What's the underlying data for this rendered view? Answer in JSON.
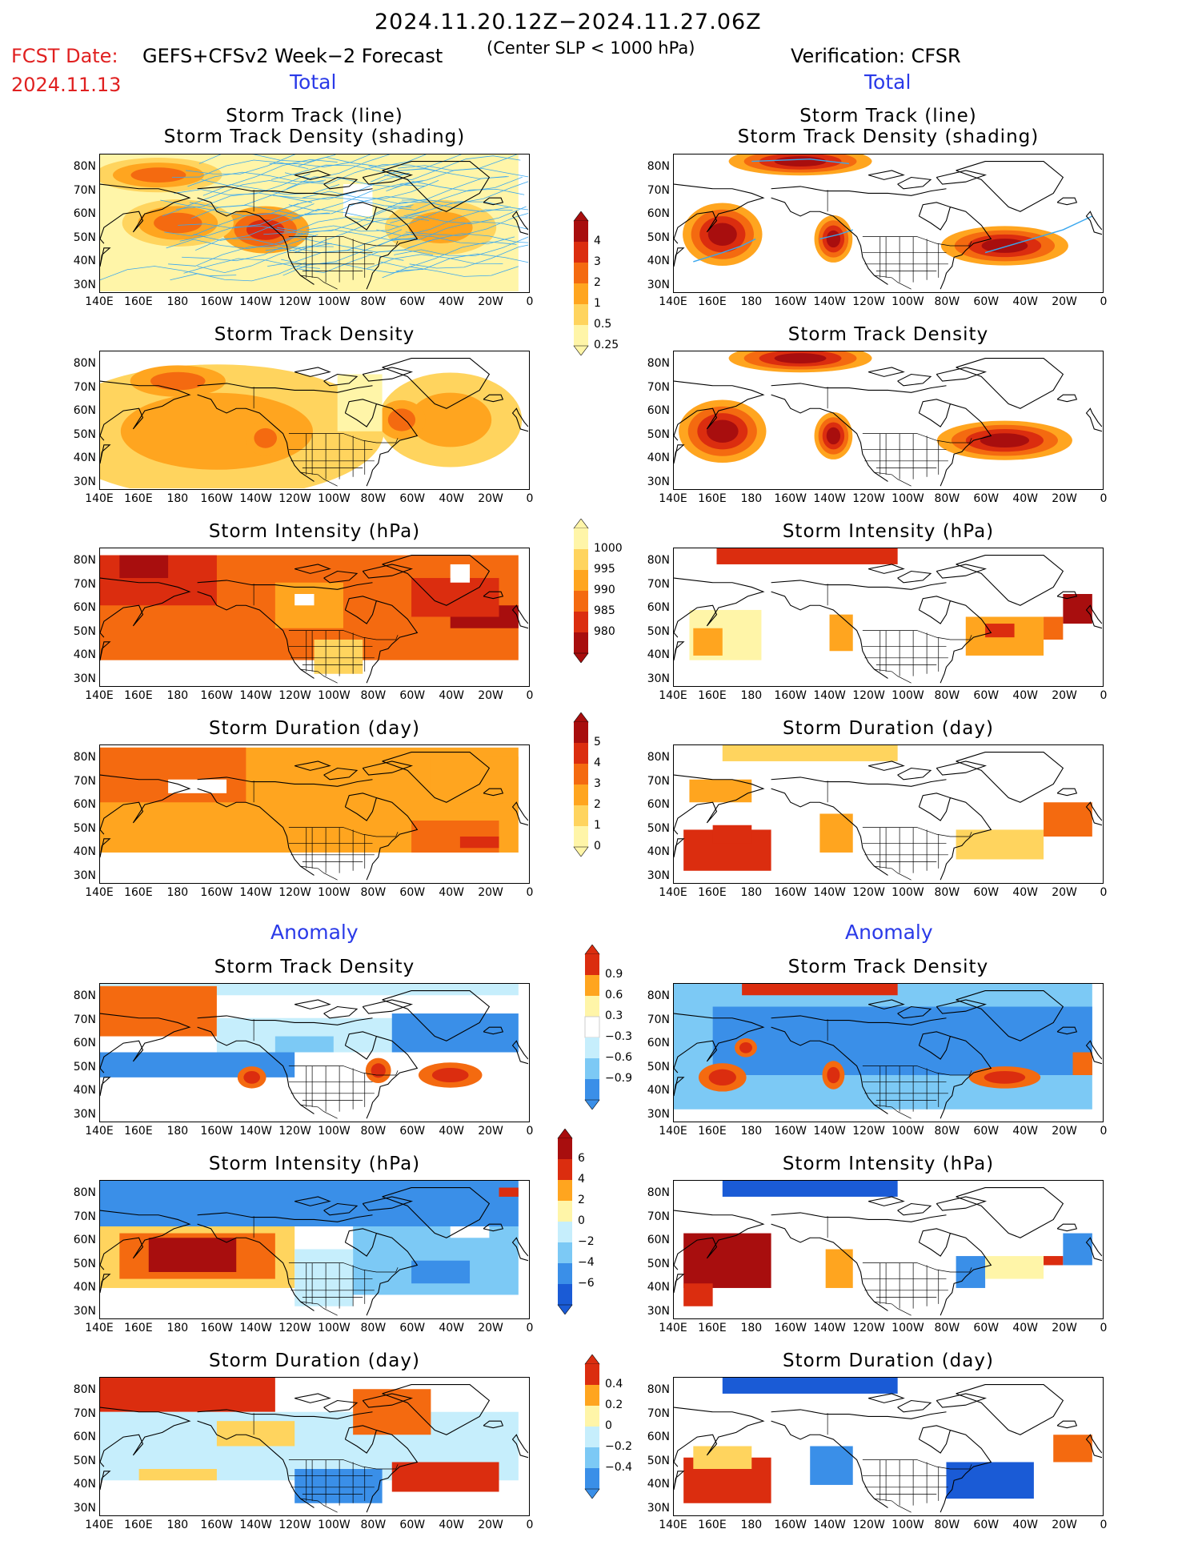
{
  "header": {
    "period": "2024.11.20.12Z−2024.11.27.06Z",
    "fcst_label": "FCST Date:",
    "fcst_model": "GEFS+CFSv2 Week−2 Forecast",
    "fcst_date": "2024.11.13",
    "criterion": "(Center SLP < 1000 hPa)",
    "verification": "Verification: CFSR"
  },
  "sections": {
    "total": "Total",
    "anomaly": "Anomaly"
  },
  "panel_titles": {
    "track_line": "Storm Track (line)",
    "track_shading": "Storm Track Density (shading)",
    "track_density": "Storm Track Density",
    "intensity": "Storm Intensity (hPa)",
    "duration": "Storm Duration (day)"
  },
  "axes": {
    "lat_labels": [
      "80N",
      "70N",
      "60N",
      "50N",
      "40N",
      "30N"
    ],
    "lon_labels": [
      "140E",
      "160E",
      "180",
      "160W",
      "140W",
      "120W",
      "100W",
      "80W",
      "60W",
      "40W",
      "20W",
      "0"
    ]
  },
  "colorbars": {
    "density_total": {
      "labels": [
        "4",
        "3",
        "2",
        "1",
        "0.5",
        "0.25"
      ]
    },
    "intensity_total": {
      "labels": [
        "1000",
        "995",
        "990",
        "985",
        "980"
      ]
    },
    "duration_total": {
      "labels": [
        "5",
        "4",
        "3",
        "2",
        "1",
        "0"
      ]
    },
    "density_anom": {
      "labels": [
        "0.9",
        "0.6",
        "0.3",
        "−0.3",
        "−0.6",
        "−0.9"
      ]
    },
    "intensity_anom": {
      "labels": [
        "6",
        "4",
        "2",
        "0",
        "−2",
        "−4",
        "−6"
      ]
    },
    "duration_anom": {
      "labels": [
        "0.4",
        "0.2",
        "0",
        "−0.2",
        "−0.4"
      ]
    }
  },
  "colors": {
    "warm": [
      "#fff5a8",
      "#ffd45e",
      "#ffa51f",
      "#f46a10",
      "#db2d0f",
      "#a80e0e"
    ],
    "cool": [
      "#c6eefc",
      "#7cc9f5",
      "#3a8fe8",
      "#1a5bd6"
    ],
    "track_line": "#3aa7ee",
    "fcst_red": "#e02020",
    "section_blue": "#2a3ae8"
  }
}
